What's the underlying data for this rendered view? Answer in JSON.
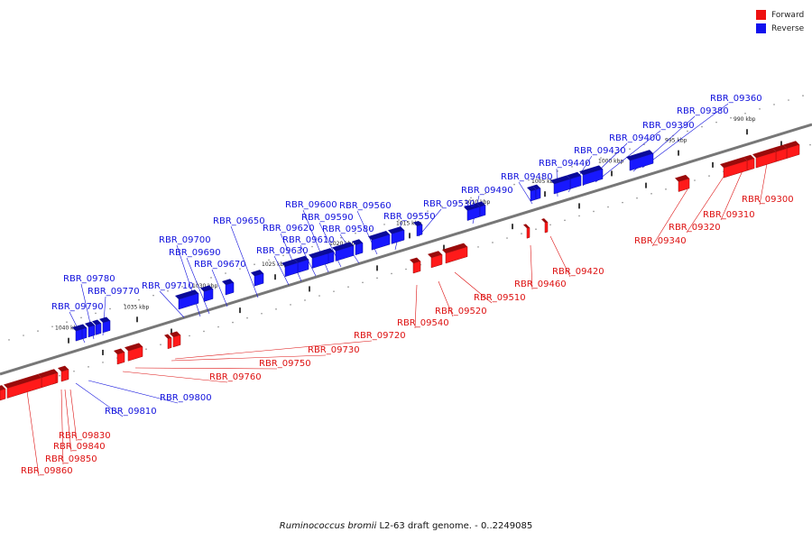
{
  "legend": {
    "forward": {
      "label": "Forward",
      "color": "#ee1111"
    },
    "reverse": {
      "label": "Reverse",
      "color": "#1111ee"
    }
  },
  "caption": {
    "organism": "Ruminococcus bromii",
    "rest": "L2-63 draft genome. - 0..2249085"
  },
  "axis": {
    "ticks": [
      {
        "label": "990 kbp"
      },
      {
        "label": "995 kbp"
      },
      {
        "label": "1000 kbp"
      },
      {
        "label": "1005 kbp"
      },
      {
        "label": "1010 kbp"
      },
      {
        "label": "1015 kbp"
      },
      {
        "label": "1020 kbp"
      },
      {
        "label": "1025 kbp"
      },
      {
        "label": "1030 kbp"
      },
      {
        "label": "1035 kbp"
      },
      {
        "label": "1040 kbp"
      }
    ]
  },
  "genes": {
    "reverse": [
      {
        "label": "RBR_09360"
      },
      {
        "label": "RBR_09380"
      },
      {
        "label": "RBR_09390"
      },
      {
        "label": "RBR_09400"
      },
      {
        "label": "RBR_09430"
      },
      {
        "label": "RBR_09440"
      },
      {
        "label": "RBR_09480"
      },
      {
        "label": "RBR_09490"
      },
      {
        "label": "RBR_09530"
      },
      {
        "label": "RBR_09550"
      },
      {
        "label": "RBR_09560"
      },
      {
        "label": "RBR_09580"
      },
      {
        "label": "RBR_09590"
      },
      {
        "label": "RBR_09600"
      },
      {
        "label": "RBR_09610"
      },
      {
        "label": "RBR_09620"
      },
      {
        "label": "RBR_09630"
      },
      {
        "label": "RBR_09650"
      },
      {
        "label": "RBR_09670"
      },
      {
        "label": "RBR_09690"
      },
      {
        "label": "RBR_09700"
      },
      {
        "label": "RBR_09710"
      },
      {
        "label": "RBR_09770"
      },
      {
        "label": "RBR_09780"
      },
      {
        "label": "RBR_09790"
      },
      {
        "label": "RBR_09800"
      },
      {
        "label": "RBR_09810"
      }
    ],
    "forward": [
      {
        "label": "RBR_09300"
      },
      {
        "label": "RBR_09310"
      },
      {
        "label": "RBR_09320"
      },
      {
        "label": "RBR_09340"
      },
      {
        "label": "RBR_09420"
      },
      {
        "label": "RBR_09460"
      },
      {
        "label": "RBR_09510"
      },
      {
        "label": "RBR_09520"
      },
      {
        "label": "RBR_09540"
      },
      {
        "label": "RBR_09720"
      },
      {
        "label": "RBR_09730"
      },
      {
        "label": "RBR_09750"
      },
      {
        "label": "RBR_09760"
      },
      {
        "label": "RBR_09830"
      },
      {
        "label": "RBR_09840"
      },
      {
        "label": "RBR_09850"
      },
      {
        "label": "RBR_09860"
      }
    ]
  }
}
